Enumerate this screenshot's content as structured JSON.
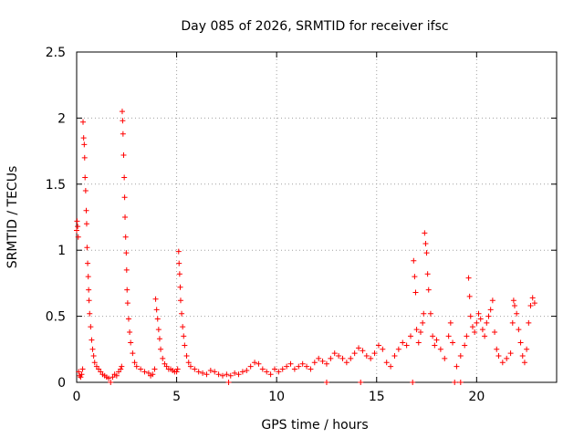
{
  "chart_data": {
    "type": "scatter",
    "title": "Day 085 of 2026, SRMTID for receiver ifsc",
    "xlabel": "GPS time / hours",
    "ylabel": "SRMTID / TECUs",
    "xlim": [
      0,
      24
    ],
    "ylim": [
      0,
      2.5
    ],
    "x_ticks": [
      0,
      5,
      10,
      15,
      20
    ],
    "x_tick_labels": [
      "0",
      "5",
      "10",
      "15",
      "20"
    ],
    "y_ticks": [
      0,
      0.5,
      1,
      1.5,
      2,
      2.5
    ],
    "y_tick_labels": [
      "0",
      "0.5",
      "1",
      "1.5",
      "2",
      "2.5"
    ],
    "grid": true,
    "marker": "+",
    "marker_color": "#ff0000",
    "series": [
      {
        "name": "SRMTID",
        "points": [
          [
            0.0,
            1.15
          ],
          [
            0.02,
            1.22
          ],
          [
            0.05,
            1.18
          ],
          [
            0.08,
            1.1
          ],
          [
            0.1,
            0.08
          ],
          [
            0.15,
            0.05
          ],
          [
            0.2,
            0.04
          ],
          [
            0.25,
            0.06
          ],
          [
            0.3,
            0.1
          ],
          [
            0.32,
            1.97
          ],
          [
            0.35,
            1.85
          ],
          [
            0.38,
            1.8
          ],
          [
            0.4,
            1.7
          ],
          [
            0.42,
            1.55
          ],
          [
            0.45,
            1.45
          ],
          [
            0.48,
            1.3
          ],
          [
            0.5,
            1.2
          ],
          [
            0.52,
            1.02
          ],
          [
            0.55,
            0.9
          ],
          [
            0.58,
            0.8
          ],
          [
            0.6,
            0.7
          ],
          [
            0.62,
            0.62
          ],
          [
            0.65,
            0.52
          ],
          [
            0.7,
            0.42
          ],
          [
            0.75,
            0.32
          ],
          [
            0.8,
            0.25
          ],
          [
            0.85,
            0.2
          ],
          [
            0.9,
            0.15
          ],
          [
            1.0,
            0.12
          ],
          [
            1.1,
            0.1
          ],
          [
            1.2,
            0.08
          ],
          [
            1.3,
            0.06
          ],
          [
            1.4,
            0.05
          ],
          [
            1.5,
            0.04
          ],
          [
            1.6,
            0.03
          ],
          [
            1.8,
            0.04
          ],
          [
            1.9,
            0.06
          ],
          [
            2.0,
            0.05
          ],
          [
            2.1,
            0.08
          ],
          [
            2.2,
            0.1
          ],
          [
            2.25,
            0.12
          ],
          [
            2.28,
            2.05
          ],
          [
            2.3,
            1.98
          ],
          [
            2.32,
            1.88
          ],
          [
            2.35,
            1.72
          ],
          [
            2.38,
            1.55
          ],
          [
            2.4,
            1.4
          ],
          [
            2.42,
            1.25
          ],
          [
            2.45,
            1.1
          ],
          [
            2.48,
            0.98
          ],
          [
            2.5,
            0.85
          ],
          [
            2.52,
            0.7
          ],
          [
            2.55,
            0.6
          ],
          [
            2.6,
            0.48
          ],
          [
            2.65,
            0.38
          ],
          [
            2.7,
            0.3
          ],
          [
            2.8,
            0.22
          ],
          [
            2.9,
            0.15
          ],
          [
            3.0,
            0.12
          ],
          [
            3.2,
            0.1
          ],
          [
            3.4,
            0.08
          ],
          [
            3.6,
            0.07
          ],
          [
            3.7,
            0.05
          ],
          [
            3.8,
            0.06
          ],
          [
            3.9,
            0.1
          ],
          [
            3.95,
            0.63
          ],
          [
            4.0,
            0.55
          ],
          [
            4.05,
            0.48
          ],
          [
            4.1,
            0.4
          ],
          [
            4.15,
            0.33
          ],
          [
            4.2,
            0.25
          ],
          [
            4.3,
            0.18
          ],
          [
            4.4,
            0.14
          ],
          [
            4.5,
            0.12
          ],
          [
            4.6,
            0.1
          ],
          [
            4.7,
            0.1
          ],
          [
            4.8,
            0.09
          ],
          [
            4.9,
            0.08
          ],
          [
            5.0,
            0.08
          ],
          [
            5.05,
            0.1
          ],
          [
            5.1,
            0.99
          ],
          [
            5.12,
            0.9
          ],
          [
            5.15,
            0.82
          ],
          [
            5.18,
            0.72
          ],
          [
            5.2,
            0.62
          ],
          [
            5.25,
            0.52
          ],
          [
            5.3,
            0.42
          ],
          [
            5.35,
            0.35
          ],
          [
            5.4,
            0.28
          ],
          [
            5.5,
            0.2
          ],
          [
            5.6,
            0.15
          ],
          [
            5.7,
            0.12
          ],
          [
            5.9,
            0.1
          ],
          [
            6.1,
            0.08
          ],
          [
            6.3,
            0.07
          ],
          [
            6.5,
            0.06
          ],
          [
            6.7,
            0.09
          ],
          [
            6.9,
            0.08
          ],
          [
            7.1,
            0.06
          ],
          [
            7.3,
            0.05
          ],
          [
            7.5,
            0.06
          ],
          [
            7.7,
            0.05
          ],
          [
            7.9,
            0.07
          ],
          [
            8.1,
            0.06
          ],
          [
            8.3,
            0.08
          ],
          [
            8.5,
            0.09
          ],
          [
            8.7,
            0.12
          ],
          [
            8.9,
            0.15
          ],
          [
            9.1,
            0.14
          ],
          [
            9.3,
            0.1
          ],
          [
            9.5,
            0.08
          ],
          [
            9.7,
            0.06
          ],
          [
            9.9,
            0.1
          ],
          [
            10.1,
            0.08
          ],
          [
            10.3,
            0.1
          ],
          [
            10.5,
            0.12
          ],
          [
            10.7,
            0.14
          ],
          [
            10.9,
            0.1
          ],
          [
            11.1,
            0.12
          ],
          [
            11.3,
            0.14
          ],
          [
            11.5,
            0.12
          ],
          [
            11.7,
            0.1
          ],
          [
            11.9,
            0.15
          ],
          [
            12.1,
            0.18
          ],
          [
            12.3,
            0.16
          ],
          [
            12.5,
            0.14
          ],
          [
            12.7,
            0.18
          ],
          [
            12.9,
            0.22
          ],
          [
            13.1,
            0.2
          ],
          [
            13.3,
            0.18
          ],
          [
            13.5,
            0.15
          ],
          [
            13.7,
            0.18
          ],
          [
            13.9,
            0.22
          ],
          [
            14.1,
            0.26
          ],
          [
            14.3,
            0.24
          ],
          [
            14.5,
            0.2
          ],
          [
            14.7,
            0.18
          ],
          [
            14.9,
            0.22
          ],
          [
            15.1,
            0.28
          ],
          [
            15.3,
            0.25
          ],
          [
            15.5,
            0.15
          ],
          [
            15.7,
            0.12
          ],
          [
            15.9,
            0.2
          ],
          [
            16.1,
            0.25
          ],
          [
            16.3,
            0.3
          ],
          [
            16.5,
            0.28
          ],
          [
            16.7,
            0.35
          ],
          [
            16.85,
            0.92
          ],
          [
            16.9,
            0.8
          ],
          [
            16.95,
            0.68
          ],
          [
            17.0,
            0.4
          ],
          [
            17.1,
            0.3
          ],
          [
            17.2,
            0.38
          ],
          [
            17.3,
            0.45
          ],
          [
            17.35,
            0.52
          ],
          [
            17.4,
            1.13
          ],
          [
            17.45,
            1.05
          ],
          [
            17.5,
            0.98
          ],
          [
            17.55,
            0.82
          ],
          [
            17.6,
            0.7
          ],
          [
            17.7,
            0.52
          ],
          [
            17.8,
            0.35
          ],
          [
            17.9,
            0.28
          ],
          [
            18.0,
            0.32
          ],
          [
            18.2,
            0.25
          ],
          [
            18.4,
            0.18
          ],
          [
            18.6,
            0.35
          ],
          [
            18.7,
            0.45
          ],
          [
            18.8,
            0.3
          ],
          [
            19.0,
            0.12
          ],
          [
            19.2,
            0.2
          ],
          [
            19.4,
            0.28
          ],
          [
            19.5,
            0.35
          ],
          [
            19.6,
            0.79
          ],
          [
            19.65,
            0.65
          ],
          [
            19.7,
            0.5
          ],
          [
            19.8,
            0.42
          ],
          [
            19.9,
            0.38
          ],
          [
            20.0,
            0.45
          ],
          [
            20.1,
            0.52
          ],
          [
            20.2,
            0.48
          ],
          [
            20.3,
            0.4
          ],
          [
            20.4,
            0.35
          ],
          [
            20.5,
            0.45
          ],
          [
            20.6,
            0.5
          ],
          [
            20.7,
            0.55
          ],
          [
            20.8,
            0.62
          ],
          [
            20.9,
            0.38
          ],
          [
            21.0,
            0.25
          ],
          [
            21.1,
            0.2
          ],
          [
            21.3,
            0.15
          ],
          [
            21.5,
            0.18
          ],
          [
            21.7,
            0.22
          ],
          [
            21.8,
            0.45
          ],
          [
            21.85,
            0.62
          ],
          [
            21.9,
            0.58
          ],
          [
            22.0,
            0.52
          ],
          [
            22.1,
            0.4
          ],
          [
            22.2,
            0.3
          ],
          [
            22.3,
            0.2
          ],
          [
            22.4,
            0.15
          ],
          [
            22.5,
            0.25
          ],
          [
            22.6,
            0.45
          ],
          [
            22.7,
            0.58
          ],
          [
            22.8,
            0.64
          ],
          [
            22.9,
            0.6
          ],
          [
            1.7,
            0.0
          ],
          [
            7.6,
            0.0
          ],
          [
            12.5,
            0.0
          ],
          [
            14.2,
            0.0
          ],
          [
            16.8,
            0.0
          ],
          [
            18.9,
            0.0
          ],
          [
            19.2,
            0.0
          ]
        ]
      }
    ]
  }
}
